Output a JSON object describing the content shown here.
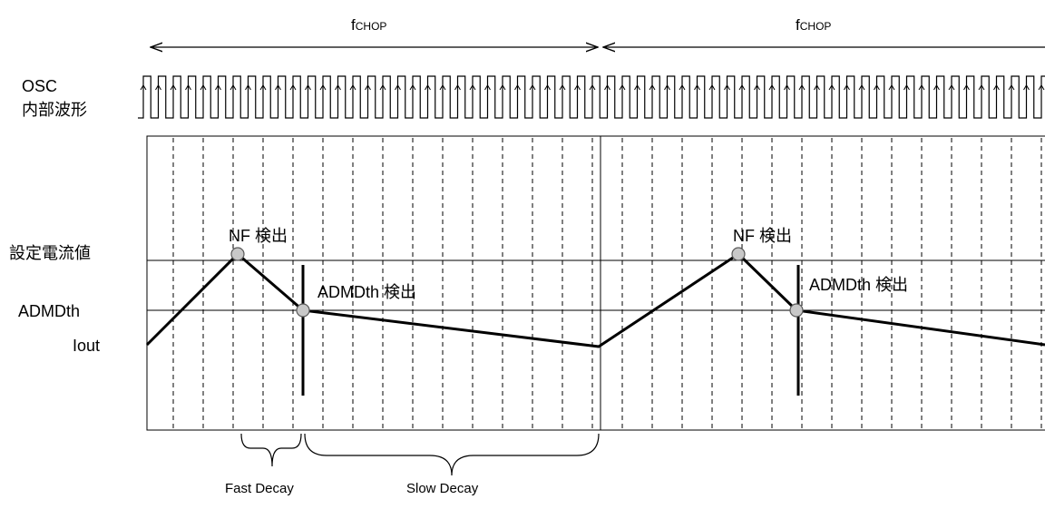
{
  "period_label": {
    "main": "f",
    "sub": "CHOP"
  },
  "left_labels": {
    "osc_line1": "OSC",
    "osc_line2": "内部波形",
    "set_current": "設定電流値",
    "admdth": "ADMDth",
    "iout": "Iout"
  },
  "annotations": {
    "nf_detect": "NF 検出",
    "admdth_detect": "ADMDth 検出"
  },
  "phases": {
    "fast": "Fast Decay",
    "slow": "Slow Decay"
  },
  "colors": {
    "line": "#000000",
    "marker_fill": "#c8c8c8",
    "marker_stroke": "#5a5a5a"
  }
}
